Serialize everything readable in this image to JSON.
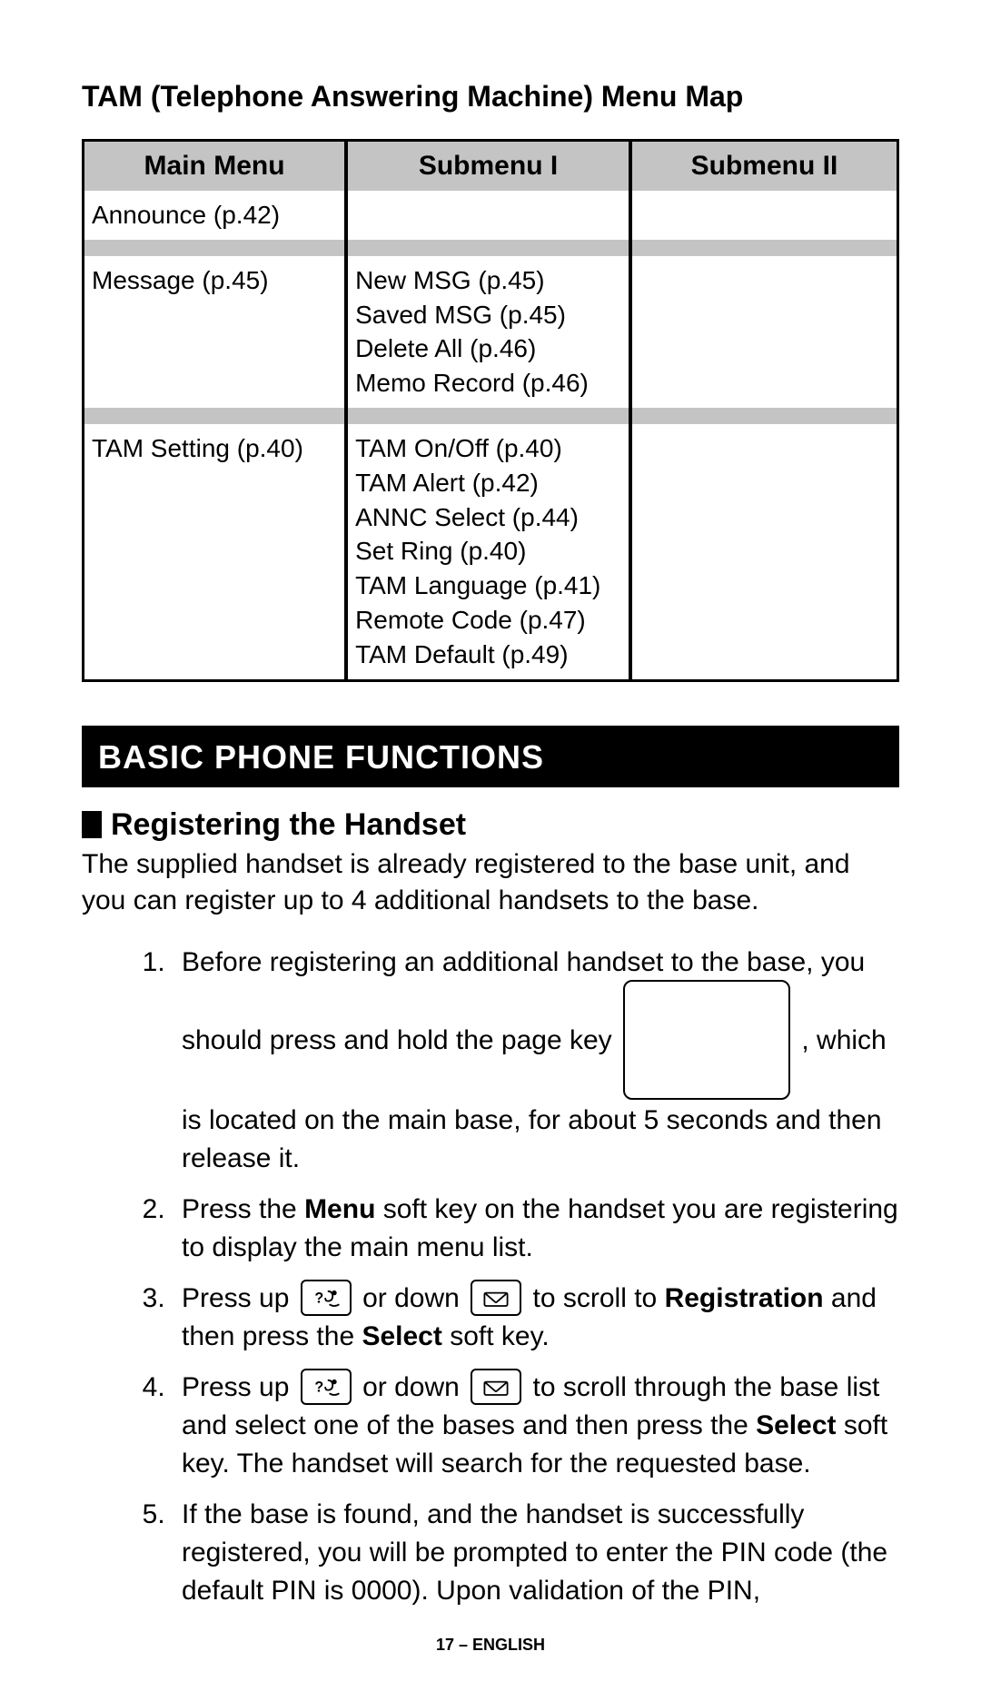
{
  "title": "TAM (Telephone Answering Machine) Menu Map",
  "table": {
    "headers": {
      "main": "Main Menu",
      "sub1": "Submenu I",
      "sub2": "Submenu II"
    },
    "rows": [
      {
        "main": "Announce (p.42)",
        "sub1": "",
        "sub2": ""
      },
      {
        "main": "Message (p.45)",
        "sub1": "New MSG (p.45)\nSaved MSG (p.45)\nDelete All (p.46)\nMemo Record (p.46)",
        "sub2": ""
      },
      {
        "main": "TAM Setting (p.40)",
        "sub1": "TAM On/Off (p.40)\nTAM Alert (p.42)\nANNC Select (p.44)\nSet Ring (p.40)\nTAM Language (p.41)\nRemote Code (p.47)\nTAM Default (p.49)",
        "sub2": ""
      }
    ]
  },
  "section_banner": "BASIC PHONE FUNCTIONS",
  "subsection": "Registering the Handset",
  "intro": "The supplied handset is already registered to the base unit, and you can register up to 4 additional handsets to the base.",
  "steps": {
    "s1a": "Before registering an additional handset to the base, you should press and hold the page key ",
    "s1b": ", which is located on the main base, for about 5 seconds and then release it.",
    "s2a": "Press the ",
    "s2_menu": "Menu",
    "s2b": " soft key on the handset you are registering to display the main menu list.",
    "s3a": "Press up",
    "s3b": " or down",
    "s3c": " to scroll to ",
    "s3_reg": "Registration",
    "s3d": " and then press the ",
    "s3_sel": "Select",
    "s3e": " soft key.",
    "s4a": "Press up",
    "s4b": " or down",
    "s4c": " to scroll through the base list and select one of the bases and then press the ",
    "s4_sel": "Select",
    "s4d": " soft key.  The handset will search for the requested base.",
    "s5": "If the base is found, and the handset is successfully registered, you will be prompted to enter the PIN code (the default PIN is 0000).  Upon validation of the PIN,"
  },
  "footer": "17 – ENGLISH",
  "colors": {
    "header_grey": "#c4c4c4",
    "banner_bg": "#000000",
    "banner_fg": "#ffffff"
  },
  "fonts": {
    "title_pt": 32,
    "table_header_pt": 30,
    "table_cell_pt": 28,
    "banner_pt": 36,
    "subhead_pt": 34,
    "body_pt": 30,
    "footer_pt": 18
  }
}
